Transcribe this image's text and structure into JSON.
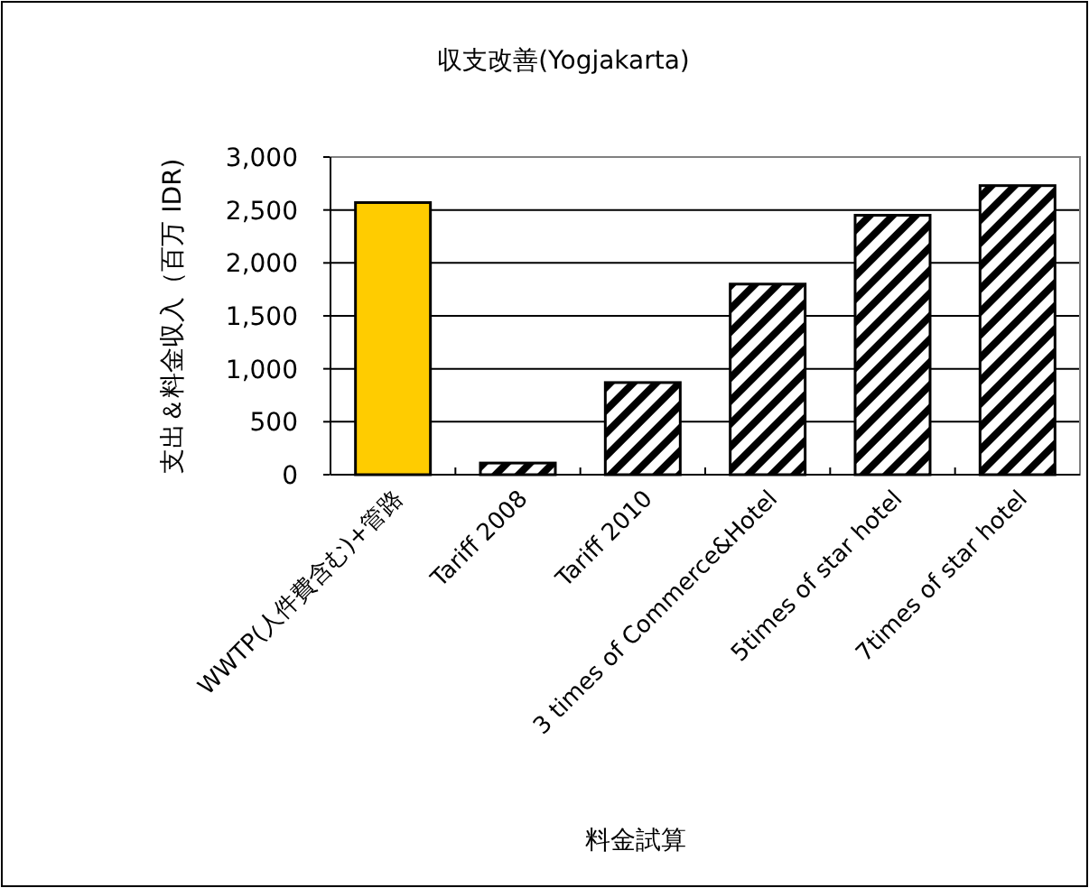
{
  "chart_data": {
    "type": "bar",
    "title": "収支改善(Yogjakarta)",
    "xlabel": "料金試算",
    "ylabel": "支出＆料金収入（百万 IDR)",
    "categories": [
      "WWTP(人件費含む)+管路",
      "Tariff 2008",
      "Tariff 2010",
      "3 times of Commerce&Hotel",
      "5times of star hotel",
      "7times of star hotel"
    ],
    "values": [
      2570,
      110,
      870,
      1800,
      2450,
      2730
    ],
    "colors": [
      "#ffcc00",
      "#000000",
      "#000000",
      "#000000",
      "#000000",
      "#000000"
    ],
    "ylim": [
      0,
      3000
    ],
    "yticks": [
      {
        "value": 0,
        "label": "0"
      },
      {
        "value": 500,
        "label": "500"
      },
      {
        "value": 1000,
        "label": "1,000"
      },
      {
        "value": 1500,
        "label": "1,500"
      },
      {
        "value": 2000,
        "label": "2,000"
      },
      {
        "value": 2500,
        "label": "2,500"
      },
      {
        "value": 3000,
        "label": "3,000"
      }
    ],
    "grid": "y"
  }
}
